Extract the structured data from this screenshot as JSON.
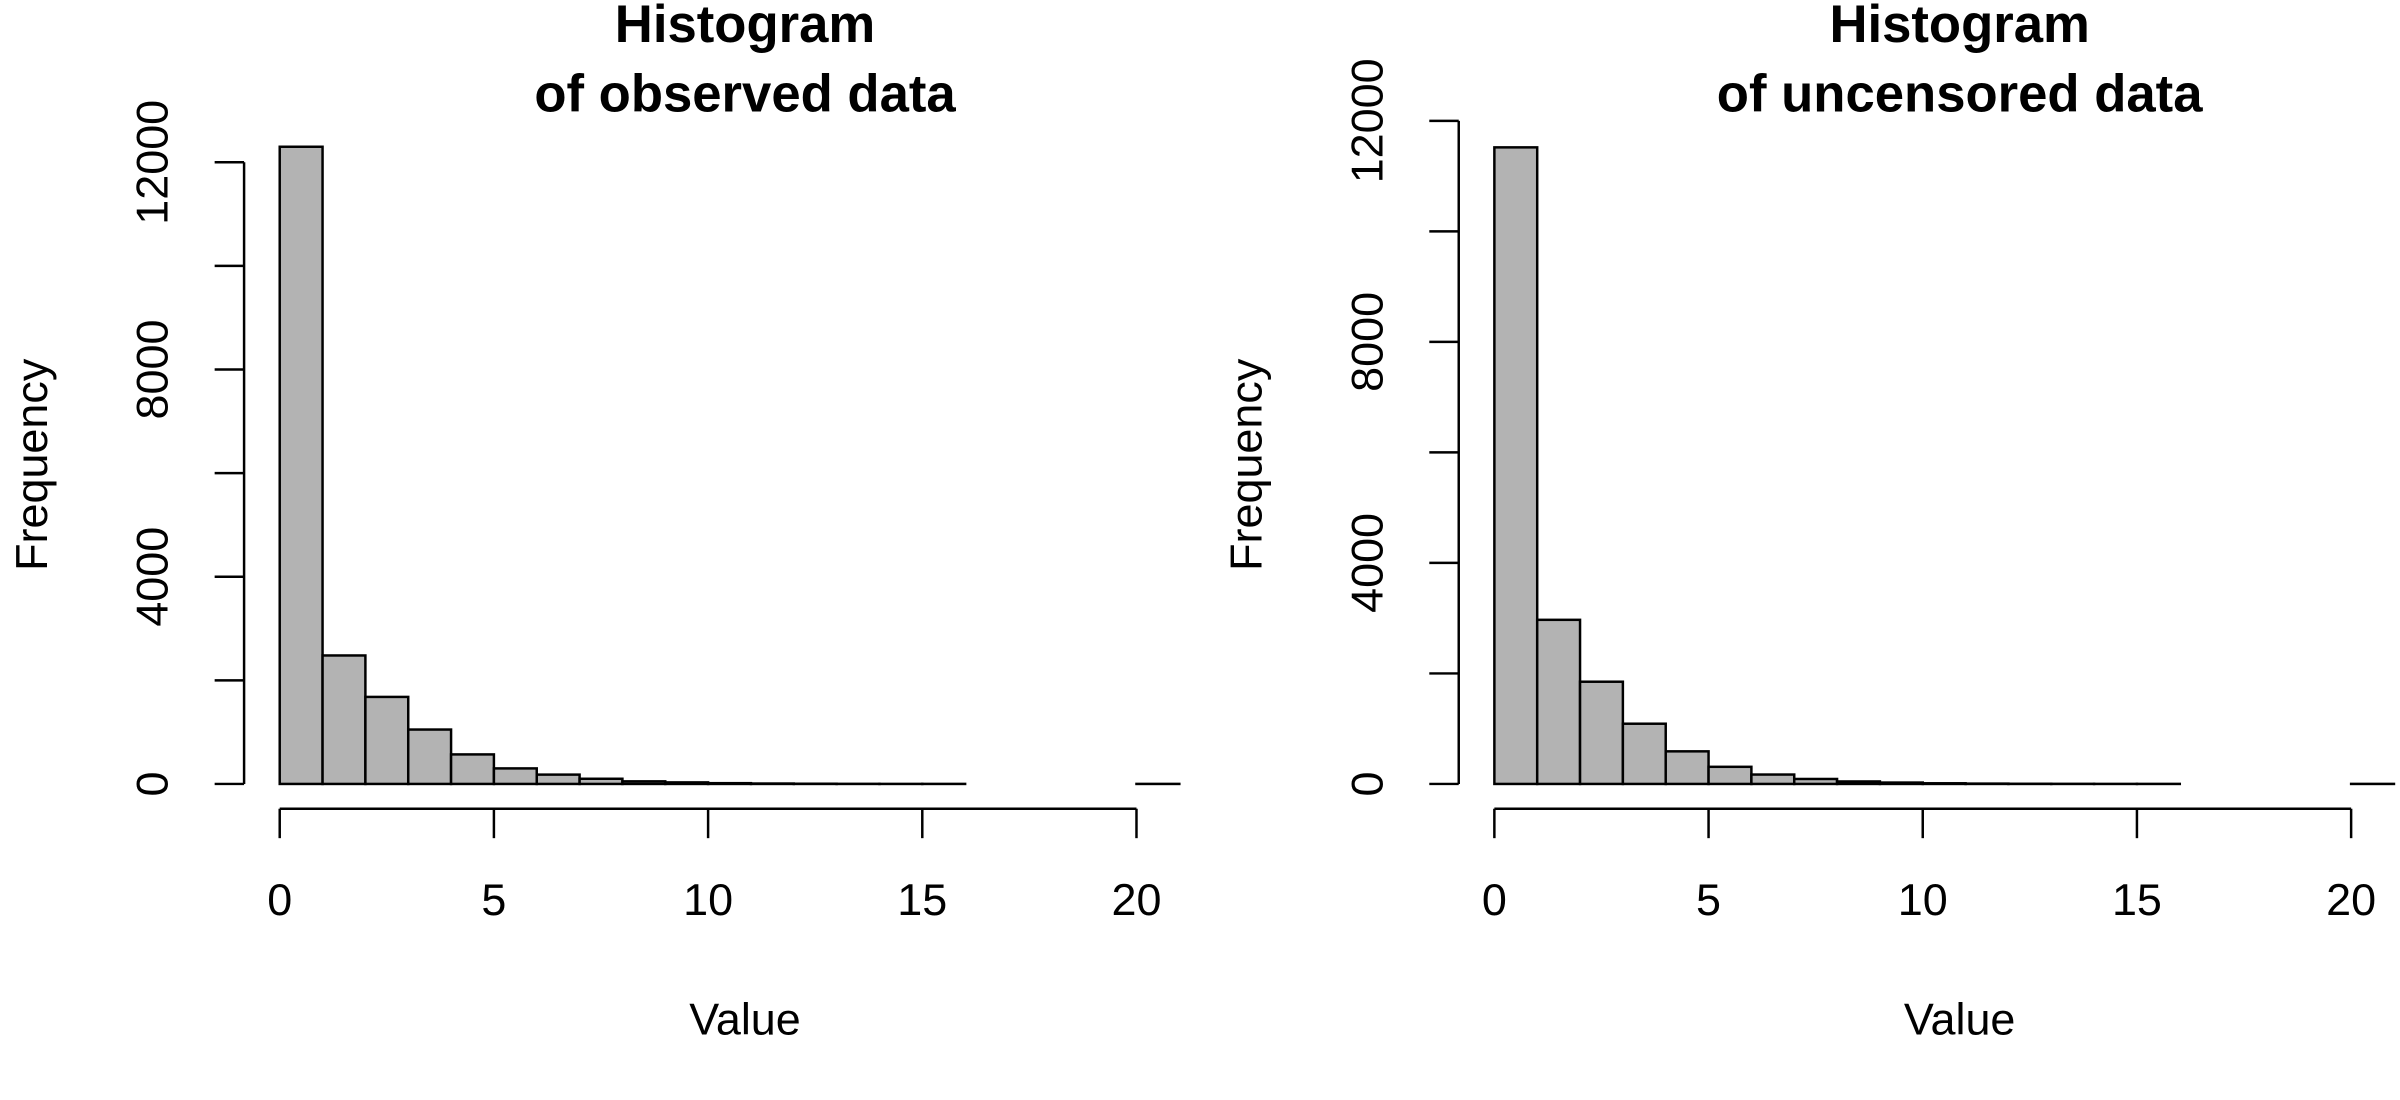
{
  "chart_data": [
    {
      "type": "histogram",
      "title": [
        "Histogram",
        "of observed data"
      ],
      "xlabel": "Value",
      "ylabel": "Frequency",
      "bins": [
        0,
        1,
        2,
        3,
        4,
        5,
        6,
        7,
        8,
        9,
        10,
        11,
        12,
        13,
        14,
        15,
        16,
        17,
        18,
        19,
        20,
        21
      ],
      "counts": [
        12300,
        2480,
        1680,
        1050,
        570,
        300,
        180,
        100,
        50,
        30,
        15,
        8,
        4,
        2,
        1,
        1,
        0,
        0,
        0,
        0,
        1
      ],
      "color": "#b3b3b3",
      "xlim": [
        0,
        21
      ],
      "xticks": [
        0,
        5,
        10,
        15,
        20
      ],
      "ylim": [
        0,
        12800
      ],
      "yticks": [
        0,
        4000,
        8000,
        12000
      ],
      "yminorticks": [
        2000,
        6000,
        10000
      ]
    },
    {
      "type": "histogram",
      "title": [
        "Histogram",
        "of uncensored data"
      ],
      "xlabel": "Value",
      "ylabel": "Frequency",
      "bins": [
        0,
        1,
        2,
        3,
        4,
        5,
        6,
        7,
        8,
        9,
        10,
        11,
        12,
        13,
        14,
        15,
        16,
        17,
        18,
        19,
        20,
        21
      ],
      "counts": [
        11520,
        2970,
        1850,
        1090,
        590,
        310,
        170,
        90,
        45,
        25,
        12,
        6,
        3,
        2,
        1,
        1,
        0,
        0,
        0,
        0,
        1
      ],
      "color": "#b3b3b3",
      "xlim": [
        0,
        21
      ],
      "xticks": [
        0,
        5,
        10,
        15,
        20
      ],
      "ylim": [
        0,
        12000
      ],
      "yticks": [
        0,
        4000,
        8000,
        12000
      ],
      "yminorticks": [
        2000,
        6000,
        10000
      ]
    }
  ]
}
